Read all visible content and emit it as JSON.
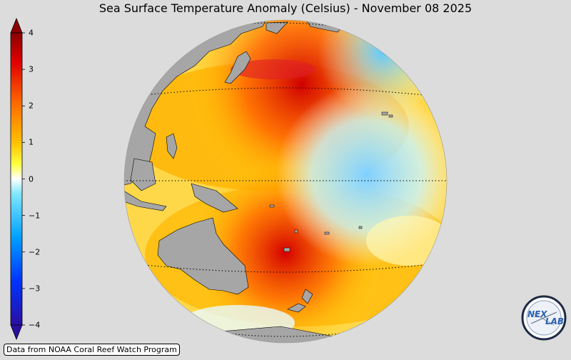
{
  "title": "Sea Surface Temperature Anomaly (Celsius) - November 08 2025",
  "colorbar": {
    "ticks": [
      "4",
      "3",
      "2",
      "1",
      "0",
      "−1",
      "−2",
      "−3",
      "−4"
    ],
    "colors": [
      "#2a0fa0",
      "#0033ff",
      "#00a0ff",
      "#7fe8ff",
      "#ffffff",
      "#ffff40",
      "#ffc000",
      "#ff7000",
      "#e00000",
      "#8b0000"
    ]
  },
  "credit": "Data from NOAA Coral Reef Watch Program",
  "logo": {
    "text_left": "NEX",
    "text_right": "LAB"
  },
  "map": {
    "land_color": "#a6a6a6",
    "ocean_anomaly_palette": [
      "#ffffff",
      "#ffff80",
      "#ffd200",
      "#ffa000",
      "#ff5000",
      "#d00000",
      "#a0ffff",
      "#40c8ff"
    ]
  }
}
